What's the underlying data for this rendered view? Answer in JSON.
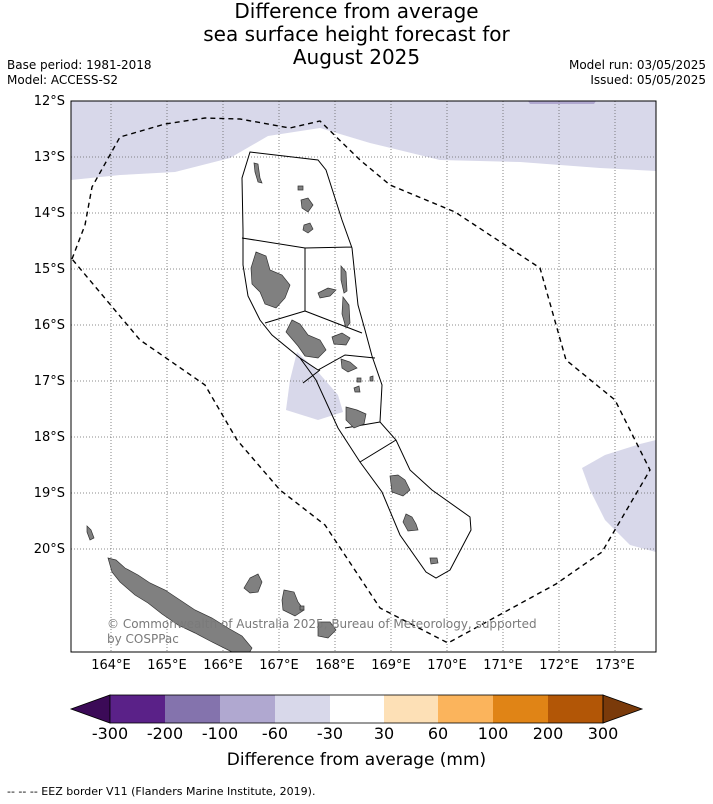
{
  "title": {
    "line1": "Difference from average",
    "line2": "sea surface height forecast for",
    "line3": "August 2025"
  },
  "info_left": {
    "base_period": "Base period: 1981-2018",
    "model": "Model: ACCESS-S2"
  },
  "info_right": {
    "model_run": "Model run: 03/05/2025",
    "issued": "Issued: 05/05/2025"
  },
  "map": {
    "lat_labels": [
      "12°S",
      "13°S",
      "14°S",
      "15°S",
      "16°S",
      "17°S",
      "18°S",
      "19°S",
      "20°S"
    ],
    "lon_labels": [
      "164°E",
      "165°E",
      "166°E",
      "167°E",
      "168°E",
      "169°E",
      "170°E",
      "171°E",
      "172°E",
      "173°E"
    ],
    "copyright": "© Commonwealth of Australia 2025, Bureau of Meteorology, supported by COSPPac",
    "colors": {
      "anomaly_minus_30_to_60": "#d8d8ea",
      "land": "#808080",
      "ocean": "#ffffff"
    }
  },
  "colorbar": {
    "ticks": [
      "-300",
      "-200",
      "-100",
      "-60",
      "-30",
      "30",
      "60",
      "100",
      "200",
      "300"
    ],
    "colors": [
      "#3b0a57",
      "#5a2188",
      "#8473ad",
      "#b0a8d0",
      "#d8d8ea",
      "#ffffff",
      "#fde0b6",
      "#fbb45c",
      "#e08416",
      "#b25606",
      "#7a3a0a"
    ],
    "label": "Difference from average (mm)"
  },
  "footer": "--  --  -- EEZ border V11 (Flanders Marine Institute, 2019)."
}
